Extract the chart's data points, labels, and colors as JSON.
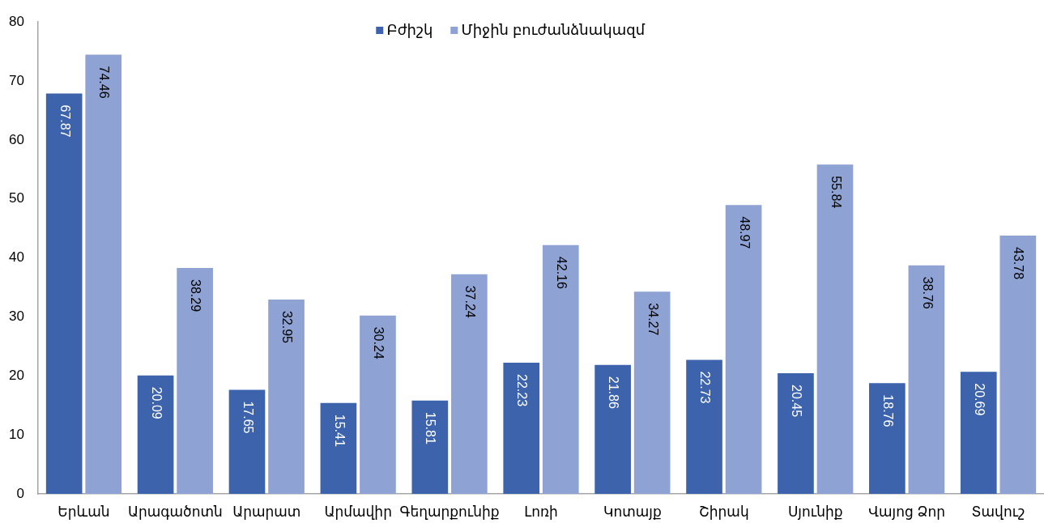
{
  "chart_data": {
    "type": "bar",
    "categories": [
      "Երևան",
      "Արագածոտն",
      "Արարատ",
      "Արմավիր",
      "Գեղարքունիք",
      "Լոռի",
      "Կոտայք",
      "Շիրակ",
      "Սյունիք",
      "Վայոց Ձոր",
      "Տավուշ"
    ],
    "series": [
      {
        "name": "Բժիշկ",
        "color": "#3c63ab",
        "values": [
          67.87,
          20.09,
          17.65,
          15.41,
          15.81,
          22.23,
          21.86,
          22.73,
          20.45,
          18.76,
          20.69
        ]
      },
      {
        "name": "Միջին բուժանձնակազմ",
        "color": "#8ea2d3",
        "values": [
          74.46,
          38.29,
          32.95,
          30.24,
          37.24,
          42.16,
          34.27,
          48.97,
          55.84,
          38.76,
          43.78
        ]
      }
    ],
    "ylim": [
      0,
      80
    ],
    "yticks": [
      0,
      10,
      20,
      30,
      40,
      50,
      60,
      70,
      80
    ],
    "grid": false,
    "legend": "top",
    "data_labels": true
  }
}
